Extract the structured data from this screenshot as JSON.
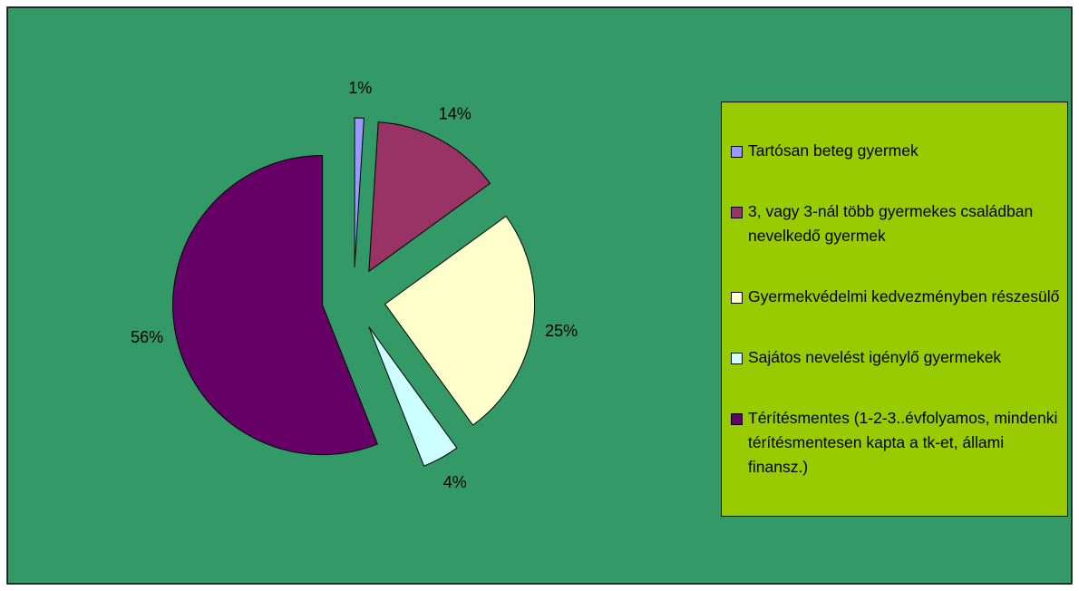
{
  "chart_data": {
    "type": "pie",
    "categories": [
      "Tartósan beteg gyermek",
      "3, vagy 3-nál több gyermekes családban nevelkedő gyermek",
      "Gyermekvédelmi kedvezményben részesülő",
      "Sajátos nevelést igénylő gyermekek",
      "Térítésmentes (1-2-3..évfolyamos, mindenki térítésmentesen kapta a tk-et, állami finansz.)"
    ],
    "values": [
      1,
      14,
      25,
      4,
      56
    ],
    "value_labels": [
      "1%",
      "14%",
      "25%",
      "4%",
      "56%"
    ],
    "colors": [
      "#9999ff",
      "#993366",
      "#ffffcc",
      "#ccffff",
      "#660066"
    ],
    "legend": "right"
  }
}
